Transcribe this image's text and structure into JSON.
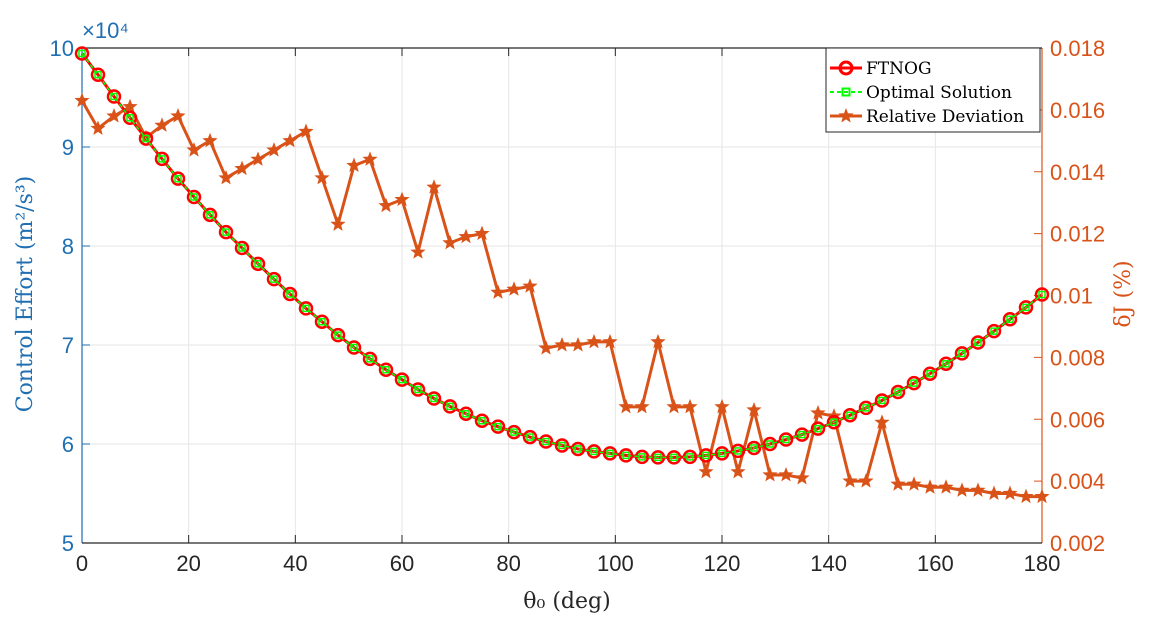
{
  "chart_data": {
    "type": "line",
    "xlabel": "θ₀ (deg)",
    "ylabel_left": "Control Effort (m²/s³)",
    "ylabel_right": "δJ (%)",
    "left_exponent_label": "×10⁴",
    "xlim": [
      0,
      180
    ],
    "ylim_left": [
      50000,
      100000
    ],
    "ylim_right": [
      0.002,
      0.018
    ],
    "x_ticks": [
      0,
      20,
      40,
      60,
      80,
      100,
      120,
      140,
      160,
      180
    ],
    "x_tick_labels": [
      "0",
      "20",
      "40",
      "60",
      "80",
      "100",
      "120",
      "140",
      "160",
      "180"
    ],
    "y_left_ticks": [
      50000,
      60000,
      70000,
      80000,
      90000,
      100000
    ],
    "y_left_tick_labels": [
      "5",
      "6",
      "7",
      "8",
      "9",
      "10"
    ],
    "y_right_ticks": [
      0.002,
      0.004,
      0.006,
      0.008,
      0.01,
      0.012,
      0.014,
      0.016,
      0.018
    ],
    "y_right_tick_labels": [
      "0.002",
      "0.004",
      "0.006",
      "0.008",
      "0.01",
      "0.012",
      "0.014",
      "0.016",
      "0.018"
    ],
    "grid": true,
    "legend_position": "top-right",
    "x": [
      0,
      3,
      6,
      9,
      12,
      15,
      18,
      21,
      24,
      27,
      30,
      33,
      36,
      39,
      42,
      45,
      48,
      51,
      54,
      57,
      60,
      63,
      66,
      69,
      72,
      75,
      78,
      81,
      84,
      87,
      90,
      93,
      96,
      99,
      102,
      105,
      108,
      111,
      114,
      117,
      120,
      123,
      126,
      129,
      132,
      135,
      138,
      141,
      144,
      147,
      150,
      153,
      156,
      159,
      162,
      165,
      168,
      171,
      174,
      177,
      180
    ],
    "series": [
      {
        "name": "FTNOG",
        "axis": "left",
        "color": "#ff0000",
        "marker": "circle",
        "values": [
          99450,
          97300,
          95100,
          92950,
          90850,
          88800,
          86800,
          84950,
          83150,
          81400,
          79800,
          78200,
          76650,
          75150,
          73700,
          72350,
          71000,
          69750,
          68600,
          67500,
          66500,
          65500,
          64600,
          63800,
          63050,
          62350,
          61750,
          61200,
          60700,
          60250,
          59850,
          59500,
          59250,
          59050,
          58850,
          58700,
          58650,
          58650,
          58700,
          58850,
          59050,
          59300,
          59600,
          60000,
          60450,
          60950,
          61550,
          62200,
          62900,
          63650,
          64400,
          65250,
          66150,
          67100,
          68100,
          69150,
          70250,
          71400,
          72600,
          73800,
          75100
        ]
      },
      {
        "name": "Optimal Solution",
        "axis": "left",
        "color": "#00ff00",
        "marker": "square",
        "values": [
          99450,
          97300,
          95100,
          92950,
          90850,
          88800,
          86800,
          84950,
          83150,
          81400,
          79800,
          78200,
          76650,
          75150,
          73700,
          72350,
          71000,
          69750,
          68600,
          67500,
          66500,
          65500,
          64600,
          63800,
          63050,
          62350,
          61750,
          61200,
          60700,
          60250,
          59850,
          59500,
          59250,
          59050,
          58850,
          58700,
          58650,
          58650,
          58700,
          58850,
          59050,
          59300,
          59600,
          60000,
          60450,
          60950,
          61550,
          62200,
          62900,
          63650,
          64400,
          65250,
          66150,
          67100,
          68100,
          69150,
          70250,
          71400,
          72600,
          73800,
          75100
        ]
      },
      {
        "name": "Relative Deviation",
        "axis": "right",
        "color": "#d95319",
        "marker": "star",
        "values": [
          0.0163,
          0.0154,
          0.0158,
          0.0161,
          0.0151,
          0.0155,
          0.0158,
          0.0147,
          0.015,
          0.0138,
          0.0141,
          0.0144,
          0.0147,
          0.015,
          0.0153,
          0.0138,
          0.0123,
          0.0142,
          0.0144,
          0.0129,
          0.0131,
          0.0114,
          0.0135,
          0.0117,
          0.0119,
          0.012,
          0.0101,
          0.0102,
          0.0103,
          0.0083,
          0.0084,
          0.0084,
          0.0085,
          0.0085,
          0.0064,
          0.0064,
          0.0085,
          0.0064,
          0.0064,
          0.0043,
          0.0064,
          0.0043,
          0.0063,
          0.0042,
          0.0042,
          0.0041,
          0.0062,
          0.0061,
          0.004,
          0.004,
          0.0059,
          0.0039,
          0.0039,
          0.0038,
          0.0038,
          0.0037,
          0.0037,
          0.0036,
          0.0036,
          0.0035,
          0.0035
        ]
      }
    ]
  }
}
